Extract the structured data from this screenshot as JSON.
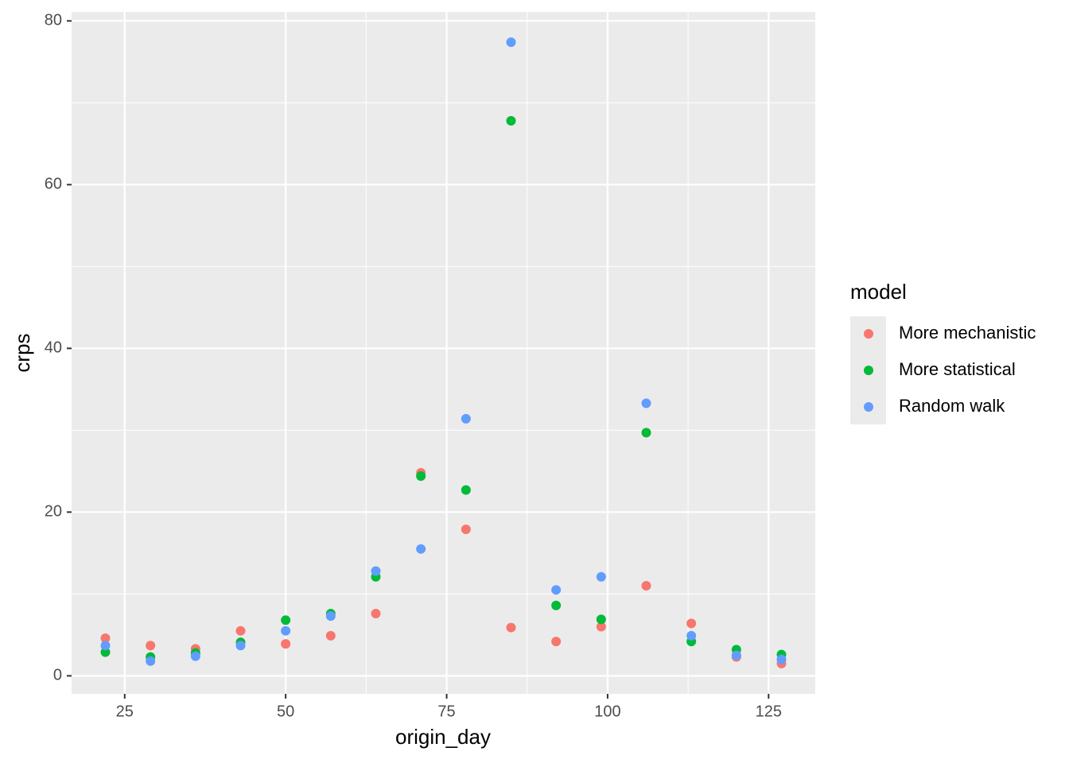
{
  "chart_data": {
    "type": "scatter",
    "x_label": "origin_day",
    "y_label": "crps",
    "legend_title": "model",
    "x": [
      22,
      29,
      36,
      43,
      50,
      57,
      64,
      71,
      78,
      85,
      92,
      99,
      106,
      113,
      120,
      127
    ],
    "series": [
      {
        "name": "More mechanistic",
        "color": "#F8766D",
        "values": [
          4.6,
          3.7,
          3.3,
          5.5,
          3.9,
          4.9,
          7.6,
          24.8,
          17.9,
          5.9,
          4.2,
          6.0,
          11.0,
          6.4,
          2.3,
          1.5
        ]
      },
      {
        "name": "More statistical",
        "color": "#00BA38",
        "values": [
          2.9,
          2.3,
          2.8,
          4.1,
          6.8,
          7.6,
          12.1,
          24.4,
          22.7,
          67.8,
          8.6,
          6.9,
          29.7,
          4.2,
          3.2,
          2.6
        ]
      },
      {
        "name": "Random walk",
        "color": "#619CFF",
        "values": [
          3.7,
          1.8,
          2.4,
          3.7,
          5.5,
          7.3,
          12.8,
          15.5,
          31.4,
          77.4,
          10.5,
          12.1,
          33.3,
          4.9,
          2.5,
          2.0
        ]
      }
    ],
    "xlim": [
      16.75,
      132.25
    ],
    "xticks": [
      25,
      50,
      75,
      100,
      125
    ],
    "ylim": [
      -2.2,
      81.1
    ],
    "yticks": [
      0,
      20,
      40,
      60,
      80
    ],
    "grid": true,
    "legend": "right"
  }
}
